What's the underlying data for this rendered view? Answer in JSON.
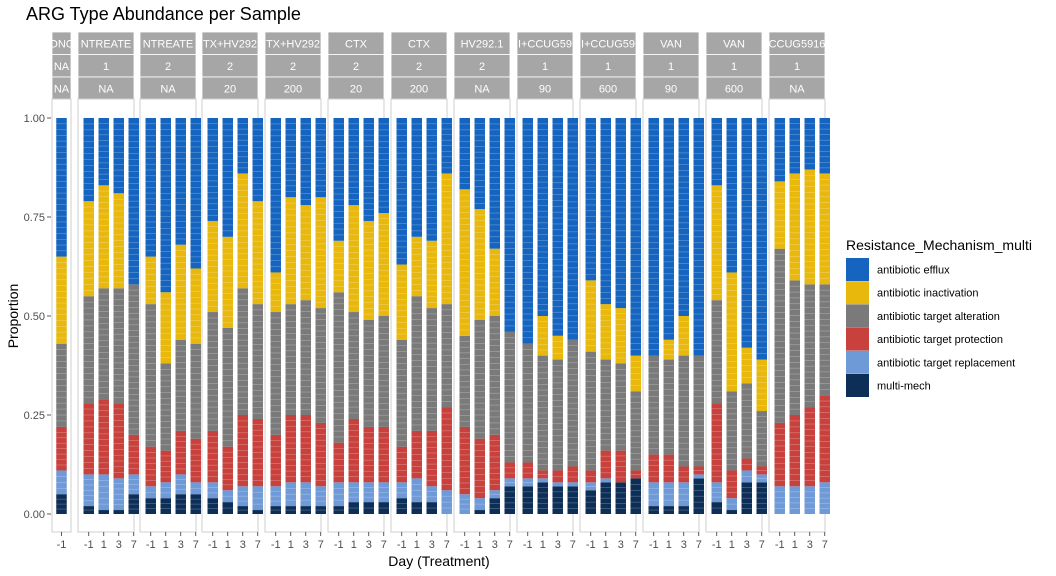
{
  "chart_data": {
    "type": "bar",
    "stacked": true,
    "title": "ARG Type Abundance per Sample",
    "xlabel": "Day (Treatment)",
    "ylabel": "Proportion",
    "ylim": [
      0,
      1
    ],
    "yticks": [
      "0.00",
      "0.25",
      "0.50",
      "0.75",
      "1.00"
    ],
    "legend": {
      "title": "Resistance_Mechanism_multi",
      "position": "right",
      "items": [
        {
          "label": "antibiotic efflux",
          "color": "#1565c0"
        },
        {
          "label": "antibiotic inactivation",
          "color": "#e8b80d"
        },
        {
          "label": "antibiotic target alteration",
          "color": "#7a7a7a"
        },
        {
          "label": "antibiotic target protection",
          "color": "#c9413c"
        },
        {
          "label": "antibiotic target replacement",
          "color": "#6f9ad8"
        },
        {
          "label": "multi-mech",
          "color": "#0c2e57"
        }
      ]
    },
    "stack_order": [
      "multi-mech",
      "antibiotic target replacement",
      "antibiotic target protection",
      "antibiotic target alteration",
      "antibiotic inactivation",
      "antibiotic efflux"
    ],
    "panels": [
      {
        "strip": [
          "ONC",
          "NA",
          "NA"
        ],
        "days": [
          "-1"
        ],
        "stacks": [
          [
            0.05,
            0.06,
            0.11,
            0.21,
            0.22,
            0.35
          ]
        ]
      },
      {
        "strip": [
          "NTREATE",
          "1",
          "NA"
        ],
        "days": [
          "-1",
          "1",
          "3",
          "7"
        ],
        "stacks": [
          [
            0.02,
            0.08,
            0.18,
            0.27,
            0.24,
            0.21
          ],
          [
            0.01,
            0.09,
            0.19,
            0.28,
            0.26,
            0.17
          ],
          [
            0.01,
            0.08,
            0.19,
            0.29,
            0.24,
            0.19
          ],
          [
            0.05,
            0.05,
            0.1,
            0.38,
            0.0,
            0.42
          ]
        ]
      },
      {
        "strip": [
          "NTREATE",
          "2",
          "NA"
        ],
        "days": [
          "-1",
          "1",
          "3",
          "7"
        ],
        "stacks": [
          [
            0.04,
            0.03,
            0.1,
            0.36,
            0.12,
            0.35
          ],
          [
            0.04,
            0.04,
            0.08,
            0.22,
            0.18,
            0.44
          ],
          [
            0.05,
            0.05,
            0.11,
            0.23,
            0.24,
            0.32
          ],
          [
            0.05,
            0.03,
            0.11,
            0.24,
            0.19,
            0.38
          ]
        ]
      },
      {
        "strip": [
          "TX+HV292",
          "2",
          "20"
        ],
        "days": [
          "-1",
          "1",
          "3",
          "7"
        ],
        "stacks": [
          [
            0.04,
            0.04,
            0.13,
            0.3,
            0.23,
            0.26
          ],
          [
            0.03,
            0.03,
            0.11,
            0.3,
            0.23,
            0.3
          ],
          [
            0.02,
            0.05,
            0.18,
            0.32,
            0.29,
            0.14
          ],
          [
            0.01,
            0.06,
            0.17,
            0.29,
            0.26,
            0.21
          ]
        ]
      },
      {
        "strip": [
          "TX+HV292",
          "2",
          "200"
        ],
        "days": [
          "-1",
          "1",
          "3",
          "7"
        ],
        "stacks": [
          [
            0.02,
            0.05,
            0.13,
            0.31,
            0.1,
            0.39
          ],
          [
            0.02,
            0.06,
            0.17,
            0.28,
            0.27,
            0.2
          ],
          [
            0.02,
            0.06,
            0.17,
            0.29,
            0.24,
            0.22
          ],
          [
            0.02,
            0.05,
            0.16,
            0.29,
            0.28,
            0.2
          ]
        ]
      },
      {
        "strip": [
          "CTX",
          "2",
          "20"
        ],
        "days": [
          "-1",
          "1",
          "3",
          "7"
        ],
        "stacks": [
          [
            0.02,
            0.06,
            0.1,
            0.38,
            0.13,
            0.31
          ],
          [
            0.03,
            0.05,
            0.16,
            0.27,
            0.27,
            0.22
          ],
          [
            0.03,
            0.05,
            0.14,
            0.27,
            0.25,
            0.26
          ],
          [
            0.03,
            0.05,
            0.14,
            0.28,
            0.26,
            0.24
          ]
        ]
      },
      {
        "strip": [
          "CTX",
          "2",
          "200"
        ],
        "days": [
          "-1",
          "1",
          "3",
          "7"
        ],
        "stacks": [
          [
            0.04,
            0.04,
            0.09,
            0.27,
            0.19,
            0.37
          ],
          [
            0.03,
            0.06,
            0.12,
            0.34,
            0.15,
            0.3
          ],
          [
            0.03,
            0.04,
            0.14,
            0.31,
            0.17,
            0.31
          ],
          [
            0.0,
            0.06,
            0.21,
            0.26,
            0.33,
            0.14
          ]
        ]
      },
      {
        "strip": [
          "HV292.1",
          "2",
          "NA"
        ],
        "days": [
          "-1",
          "1",
          "3",
          "7"
        ],
        "stacks": [
          [
            0.0,
            0.05,
            0.17,
            0.23,
            0.37,
            0.18
          ],
          [
            0.01,
            0.03,
            0.15,
            0.3,
            0.28,
            0.23
          ],
          [
            0.04,
            0.02,
            0.14,
            0.3,
            0.17,
            0.33
          ],
          [
            0.07,
            0.02,
            0.04,
            0.33,
            0.0,
            0.54
          ]
        ]
      },
      {
        "strip": [
          "I+CCUG59",
          "1",
          "90"
        ],
        "days": [
          "-1",
          "1",
          "3",
          "7"
        ],
        "stacks": [
          [
            0.07,
            0.02,
            0.04,
            0.3,
            0.0,
            0.57
          ],
          [
            0.08,
            0.01,
            0.02,
            0.29,
            0.1,
            0.5
          ],
          [
            0.07,
            0.01,
            0.03,
            0.28,
            0.06,
            0.55
          ],
          [
            0.07,
            0.01,
            0.04,
            0.32,
            0.0,
            0.56
          ]
        ]
      },
      {
        "strip": [
          "I+CCUG59",
          "1",
          "600"
        ],
        "days": [
          "-1",
          "1",
          "3",
          "7"
        ],
        "stacks": [
          [
            0.06,
            0.02,
            0.03,
            0.3,
            0.18,
            0.41
          ],
          [
            0.08,
            0.01,
            0.07,
            0.23,
            0.14,
            0.47
          ],
          [
            0.08,
            0.0,
            0.08,
            0.22,
            0.14,
            0.48
          ],
          [
            0.09,
            0.0,
            0.02,
            0.2,
            0.09,
            0.6
          ]
        ]
      },
      {
        "strip": [
          "VAN",
          "1",
          "90"
        ],
        "days": [
          "-1",
          "1",
          "3",
          "7"
        ],
        "stacks": [
          [
            0.02,
            0.06,
            0.07,
            0.25,
            0.0,
            0.6
          ],
          [
            0.02,
            0.06,
            0.07,
            0.24,
            0.05,
            0.56
          ],
          [
            0.02,
            0.06,
            0.04,
            0.28,
            0.1,
            0.5
          ],
          [
            0.09,
            0.01,
            0.02,
            0.28,
            0.0,
            0.6
          ]
        ]
      },
      {
        "strip": [
          "VAN",
          "1",
          "600"
        ],
        "days": [
          "-1",
          "1",
          "3",
          "7"
        ],
        "stacks": [
          [
            0.03,
            0.05,
            0.2,
            0.26,
            0.29,
            0.17
          ],
          [
            0.01,
            0.03,
            0.07,
            0.2,
            0.3,
            0.39
          ],
          [
            0.08,
            0.03,
            0.03,
            0.19,
            0.09,
            0.58
          ],
          [
            0.08,
            0.02,
            0.02,
            0.14,
            0.13,
            0.61
          ]
        ]
      },
      {
        "strip": [
          "CCUG5916",
          "1",
          "NA"
        ],
        "days": [
          "-1",
          "1",
          "3",
          "7"
        ],
        "stacks": [
          [
            0.0,
            0.07,
            0.16,
            0.44,
            0.17,
            0.16
          ],
          [
            0.0,
            0.07,
            0.18,
            0.34,
            0.27,
            0.14
          ],
          [
            0.0,
            0.07,
            0.2,
            0.31,
            0.29,
            0.13
          ],
          [
            0.0,
            0.08,
            0.22,
            0.28,
            0.28,
            0.14
          ]
        ]
      }
    ]
  }
}
